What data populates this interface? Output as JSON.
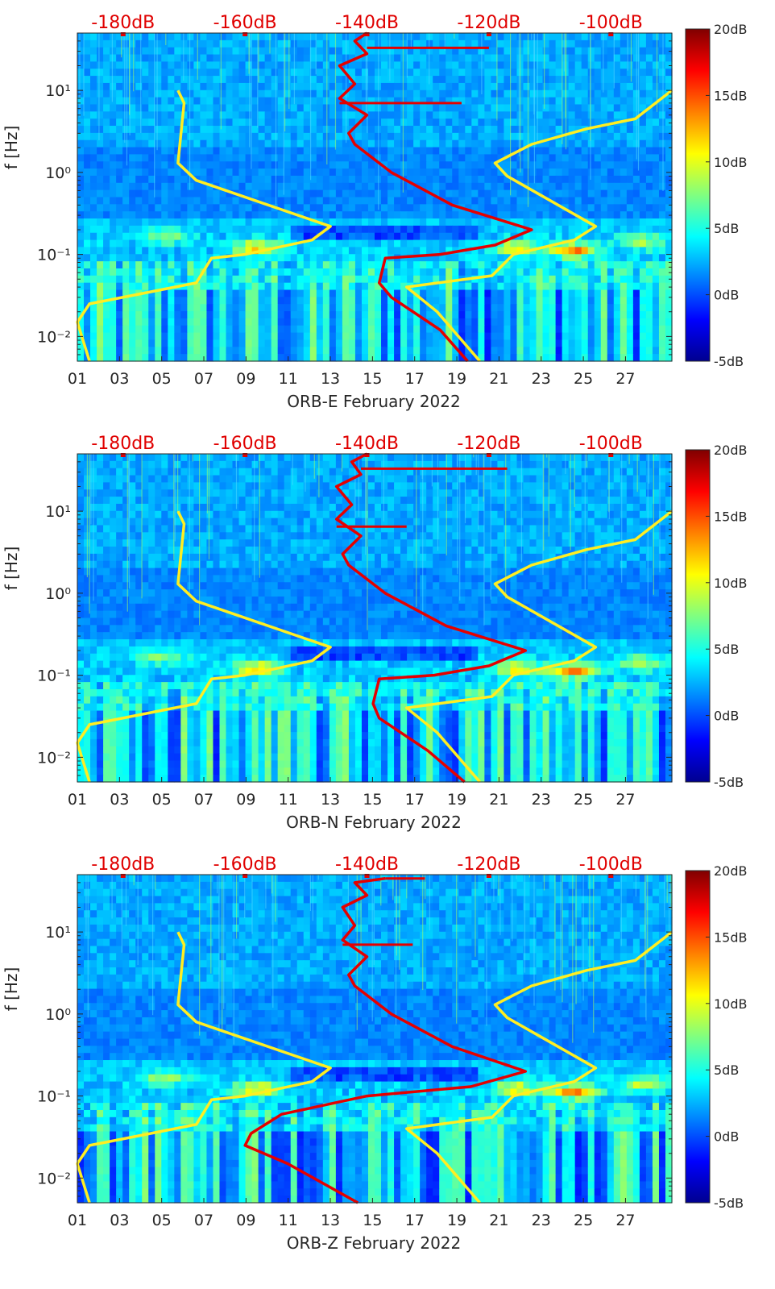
{
  "colormap": {
    "name": "jet",
    "stops": [
      "#00008f",
      "#0000ff",
      "#0080ff",
      "#00ffff",
      "#80ff80",
      "#ffff00",
      "#ff8000",
      "#ff0000",
      "#800000"
    ],
    "min_db": -5,
    "max_db": 20,
    "tick_labels": [
      "20dB",
      "15dB",
      "10dB",
      "5dB",
      "0dB",
      "-5dB"
    ],
    "tick_values": [
      20,
      15,
      10,
      5,
      0,
      -5
    ]
  },
  "line_colors": {
    "noise_model": "#ffee22",
    "station_noise": "#e40000"
  },
  "chart_data": [
    {
      "type": "heatmap",
      "title": "ORB-E February 2022",
      "xlabel": "ORB-E February 2022",
      "ylabel": "f [Hz]",
      "x_day_range": [
        1,
        29.2
      ],
      "x_tick_labels": [
        "01",
        "03",
        "05",
        "07",
        "09",
        "11",
        "13",
        "15",
        "17",
        "19",
        "21",
        "23",
        "25",
        "27"
      ],
      "x_tick_days": [
        1,
        3,
        5,
        7,
        9,
        11,
        13,
        15,
        17,
        19,
        21,
        23,
        25,
        27
      ],
      "y_log_range_hz": [
        0.005,
        50
      ],
      "y_tick_labels": [
        "10¹",
        "10⁰",
        "10⁻¹",
        "10⁻²"
      ],
      "y_tick_values_hz": [
        10,
        1,
        0.1,
        0.01
      ],
      "top_axis_tick_labels": [
        "-180dB",
        "-160dB",
        "-140dB",
        "-120dB",
        "-100dB"
      ],
      "top_axis_tick_values_db": [
        -180,
        -160,
        -140,
        -120,
        -100
      ],
      "top_axis_range_db": [
        -187.5,
        -90
      ],
      "noise_model_lines": [
        {
          "name": "low noise model",
          "points_db_hz": [
            [
              -185.5,
              0.005
            ],
            [
              -187.5,
              0.015
            ],
            [
              -185.5,
              0.025
            ],
            [
              -168,
              0.045
            ],
            [
              -165.5,
              0.09
            ],
            [
              -160,
              0.1
            ],
            [
              -149,
              0.15
            ],
            [
              -146,
              0.22
            ],
            [
              -168,
              0.8
            ],
            [
              -171,
              1.3
            ],
            [
              -170,
              7
            ],
            [
              -171,
              10
            ]
          ]
        },
        {
          "name": "high noise model",
          "points_db_hz": [
            [
              -121.5,
              0.005
            ],
            [
              -128.5,
              0.02
            ],
            [
              -133.5,
              0.04
            ],
            [
              -119.5,
              0.055
            ],
            [
              -116,
              0.1
            ],
            [
              -106,
              0.15
            ],
            [
              -102.5,
              0.22
            ],
            [
              -117,
              0.9
            ],
            [
              -119,
              1.3
            ],
            [
              -113,
              2.2
            ],
            [
              -104,
              3.4
            ],
            [
              -96,
              4.5
            ],
            [
              -90,
              10
            ]
          ]
        }
      ],
      "station_noise_line_points_db_hz": [
        [
          -123.5,
          0.005
        ],
        [
          -128,
          0.012
        ],
        [
          -136,
          0.03
        ],
        [
          -138,
          0.045
        ],
        [
          -137,
          0.09
        ],
        [
          -128,
          0.1
        ],
        [
          -119,
          0.13
        ],
        [
          -113,
          0.2
        ],
        [
          -126,
          0.4
        ],
        [
          -136,
          1.0
        ],
        [
          -142,
          2.2
        ],
        [
          -143,
          3.0
        ],
        [
          -140,
          5.0
        ],
        [
          -144.5,
          8.0
        ],
        [
          -142,
          12
        ],
        [
          -144.5,
          20
        ],
        [
          -140,
          28
        ],
        [
          -142,
          40
        ],
        [
          -140,
          50
        ]
      ],
      "station_noise_spikes_db_hz": [
        [
          -124.5,
          7.0
        ],
        [
          -120,
          33
        ]
      ]
    },
    {
      "type": "heatmap",
      "title": "ORB-N February 2022",
      "xlabel": "ORB-N February 2022",
      "ylabel": "f [Hz]",
      "x_day_range": [
        1,
        29.2
      ],
      "x_tick_labels": [
        "01",
        "03",
        "05",
        "07",
        "09",
        "11",
        "13",
        "15",
        "17",
        "19",
        "21",
        "23",
        "25",
        "27"
      ],
      "x_tick_days": [
        1,
        3,
        5,
        7,
        9,
        11,
        13,
        15,
        17,
        19,
        21,
        23,
        25,
        27
      ],
      "y_log_range_hz": [
        0.005,
        50
      ],
      "y_tick_labels": [
        "10¹",
        "10⁰",
        "10⁻¹",
        "10⁻²"
      ],
      "y_tick_values_hz": [
        10,
        1,
        0.1,
        0.01
      ],
      "top_axis_tick_labels": [
        "-180dB",
        "-160dB",
        "-140dB",
        "-120dB",
        "-100dB"
      ],
      "top_axis_tick_values_db": [
        -180,
        -160,
        -140,
        -120,
        -100
      ],
      "top_axis_range_db": [
        -187.5,
        -90
      ],
      "noise_model_lines": [
        {
          "name": "low noise model",
          "points_db_hz": [
            [
              -185.5,
              0.005
            ],
            [
              -187.5,
              0.015
            ],
            [
              -185.5,
              0.025
            ],
            [
              -168,
              0.045
            ],
            [
              -165.5,
              0.09
            ],
            [
              -160,
              0.1
            ],
            [
              -149,
              0.15
            ],
            [
              -146,
              0.22
            ],
            [
              -168,
              0.8
            ],
            [
              -171,
              1.3
            ],
            [
              -170,
              7
            ],
            [
              -171,
              10
            ]
          ]
        },
        {
          "name": "high noise model",
          "points_db_hz": [
            [
              -121.5,
              0.005
            ],
            [
              -128.5,
              0.02
            ],
            [
              -133.5,
              0.04
            ],
            [
              -119.5,
              0.055
            ],
            [
              -116,
              0.1
            ],
            [
              -106,
              0.15
            ],
            [
              -102.5,
              0.22
            ],
            [
              -117,
              0.9
            ],
            [
              -119,
              1.3
            ],
            [
              -113,
              2.2
            ],
            [
              -104,
              3.4
            ],
            [
              -96,
              4.5
            ],
            [
              -90,
              10
            ]
          ]
        }
      ],
      "station_noise_line_points_db_hz": [
        [
          -124,
          0.005
        ],
        [
          -130,
          0.012
        ],
        [
          -138,
          0.03
        ],
        [
          -139,
          0.045
        ],
        [
          -138,
          0.09
        ],
        [
          -129,
          0.1
        ],
        [
          -120,
          0.13
        ],
        [
          -114,
          0.2
        ],
        [
          -127,
          0.4
        ],
        [
          -137,
          1.0
        ],
        [
          -143,
          2.2
        ],
        [
          -144,
          3.0
        ],
        [
          -141,
          5.0
        ],
        [
          -145,
          8.0
        ],
        [
          -142.5,
          12
        ],
        [
          -145,
          20
        ],
        [
          -141,
          28
        ],
        [
          -142.5,
          40
        ],
        [
          -140,
          50
        ]
      ],
      "station_noise_spikes_db_hz": [
        [
          -133.5,
          6.5
        ],
        [
          -117,
          33
        ]
      ]
    },
    {
      "type": "heatmap",
      "title": "ORB-Z February 2022",
      "xlabel": "ORB-Z February 2022",
      "ylabel": "f [Hz]",
      "x_day_range": [
        1,
        29.2
      ],
      "x_tick_labels": [
        "01",
        "03",
        "05",
        "07",
        "09",
        "11",
        "13",
        "15",
        "17",
        "19",
        "21",
        "23",
        "25",
        "27"
      ],
      "x_tick_days": [
        1,
        3,
        5,
        7,
        9,
        11,
        13,
        15,
        17,
        19,
        21,
        23,
        25,
        27
      ],
      "y_log_range_hz": [
        0.005,
        50
      ],
      "y_tick_labels": [
        "10¹",
        "10⁰",
        "10⁻¹",
        "10⁻²"
      ],
      "y_tick_values_hz": [
        10,
        1,
        0.1,
        0.01
      ],
      "top_axis_tick_labels": [
        "-180dB",
        "-160dB",
        "-140dB",
        "-120dB",
        "-100dB"
      ],
      "top_axis_tick_values_db": [
        -180,
        -160,
        -140,
        -120,
        -100
      ],
      "top_axis_range_db": [
        -187.5,
        -90
      ],
      "noise_model_lines": [
        {
          "name": "low noise model",
          "points_db_hz": [
            [
              -185.5,
              0.005
            ],
            [
              -187.5,
              0.015
            ],
            [
              -185.5,
              0.025
            ],
            [
              -168,
              0.045
            ],
            [
              -165.5,
              0.09
            ],
            [
              -160,
              0.1
            ],
            [
              -149,
              0.15
            ],
            [
              -146,
              0.22
            ],
            [
              -168,
              0.8
            ],
            [
              -171,
              1.3
            ],
            [
              -170,
              7
            ],
            [
              -171,
              10
            ]
          ]
        },
        {
          "name": "high noise model",
          "points_db_hz": [
            [
              -121.5,
              0.005
            ],
            [
              -128.5,
              0.02
            ],
            [
              -133.5,
              0.04
            ],
            [
              -119.5,
              0.055
            ],
            [
              -116,
              0.1
            ],
            [
              -106,
              0.15
            ],
            [
              -102.5,
              0.22
            ],
            [
              -117,
              0.9
            ],
            [
              -119,
              1.3
            ],
            [
              -113,
              2.2
            ],
            [
              -104,
              3.4
            ],
            [
              -96,
              4.5
            ],
            [
              -90,
              10
            ]
          ]
        }
      ],
      "station_noise_line_points_db_hz": [
        [
          -141.5,
          0.005
        ],
        [
          -153,
          0.015
        ],
        [
          -160,
          0.025
        ],
        [
          -159,
          0.035
        ],
        [
          -154,
          0.06
        ],
        [
          -140,
          0.1
        ],
        [
          -123,
          0.13
        ],
        [
          -114,
          0.2
        ],
        [
          -126,
          0.4
        ],
        [
          -136,
          1.0
        ],
        [
          -142,
          2.2
        ],
        [
          -143,
          3.0
        ],
        [
          -140,
          5.0
        ],
        [
          -144,
          8.0
        ],
        [
          -142,
          12
        ],
        [
          -144,
          20
        ],
        [
          -140,
          28
        ],
        [
          -142,
          40
        ],
        [
          -137,
          45
        ]
      ],
      "station_noise_spikes_db_hz": [
        [
          -132.5,
          7.0
        ],
        [
          -130.5,
          45
        ]
      ]
    }
  ]
}
